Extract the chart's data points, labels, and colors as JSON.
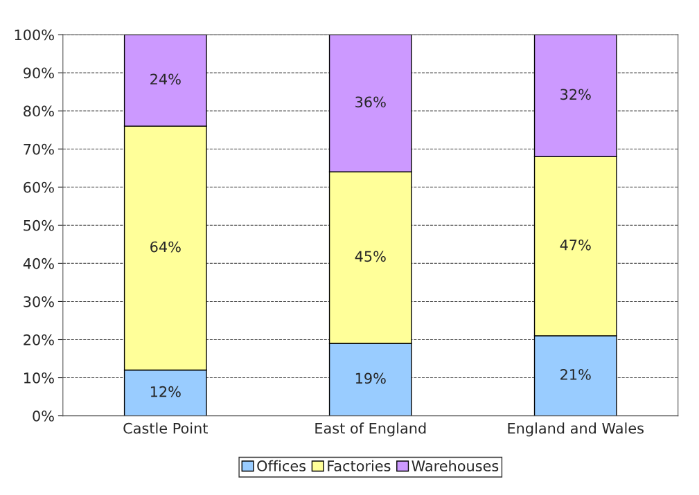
{
  "chart_data": {
    "type": "bar",
    "stacked": true,
    "categories": [
      "Castle Point",
      "East of England",
      "England and Wales"
    ],
    "series": [
      {
        "name": "Offices",
        "color": "#99ccff",
        "values": [
          12,
          19,
          21
        ],
        "value_labels": [
          "12%",
          "19%",
          "21%"
        ]
      },
      {
        "name": "Factories",
        "color": "#ffff99",
        "values": [
          64,
          45,
          47
        ],
        "value_labels": [
          "64%",
          "45%",
          "47%"
        ]
      },
      {
        "name": "Warehouses",
        "color": "#cc99ff",
        "values": [
          24,
          36,
          32
        ],
        "value_labels": [
          "24%",
          "36%",
          "32%"
        ]
      }
    ],
    "ylim": [
      0,
      100
    ],
    "yticks": [
      {
        "value": 0,
        "label": "0%"
      },
      {
        "value": 10,
        "label": "10%"
      },
      {
        "value": 20,
        "label": "20%"
      },
      {
        "value": 30,
        "label": "30%"
      },
      {
        "value": 40,
        "label": "40%"
      },
      {
        "value": 50,
        "label": "50%"
      },
      {
        "value": 60,
        "label": "60%"
      },
      {
        "value": 70,
        "label": "70%"
      },
      {
        "value": 80,
        "label": "80%"
      },
      {
        "value": 90,
        "label": "90%"
      },
      {
        "value": 100,
        "label": "100%"
      }
    ],
    "grid": "y",
    "line_style": "dashed",
    "legend": "bottom"
  }
}
